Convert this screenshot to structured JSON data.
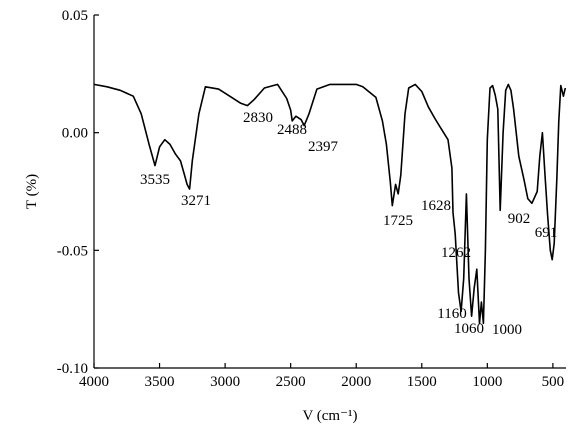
{
  "chart_data": {
    "type": "line",
    "xlabel": "V (cm⁻¹)",
    "ylabel": "T (%)",
    "xlim": [
      4000,
      400
    ],
    "ylim": [
      -0.1,
      0.05
    ],
    "grid": false,
    "x_ticks": [
      4000,
      3500,
      3000,
      2500,
      2000,
      1500,
      1000,
      500
    ],
    "y_ticks": [
      {
        "value": 0.05,
        "label": "0.05"
      },
      {
        "value": 0.0,
        "label": "0.00"
      },
      {
        "value": -0.05,
        "label": "-0.05"
      },
      {
        "value": -0.1,
        "label": "-0.10"
      }
    ],
    "series": [
      {
        "x": [
          4000,
          3900,
          3800,
          3700,
          3640,
          3580,
          3535,
          3500,
          3460,
          3420,
          3380,
          3340,
          3310,
          3290,
          3271,
          3250,
          3200,
          3150,
          3050,
          2950,
          2880,
          2830,
          2780,
          2700,
          2600,
          2530,
          2500,
          2488,
          2460,
          2420,
          2397,
          2360,
          2300,
          2200,
          2100,
          2000,
          1950,
          1850,
          1800,
          1770,
          1740,
          1725,
          1700,
          1680,
          1660,
          1628,
          1600,
          1550,
          1500,
          1450,
          1400,
          1350,
          1300,
          1270,
          1262,
          1245,
          1220,
          1200,
          1180,
          1160,
          1140,
          1120,
          1100,
          1080,
          1060,
          1045,
          1030,
          1015,
          1000,
          980,
          960,
          940,
          920,
          902,
          880,
          860,
          840,
          820,
          800,
          760,
          720,
          691,
          660,
          620,
          600,
          580,
          560,
          540,
          520,
          505,
          490,
          470,
          455,
          440,
          420,
          405
        ],
        "y": [
          0.0205,
          0.0195,
          0.018,
          0.0155,
          0.008,
          -0.005,
          -0.014,
          -0.006,
          -0.003,
          -0.005,
          -0.009,
          -0.012,
          -0.018,
          -0.022,
          -0.024,
          -0.012,
          0.008,
          0.0195,
          0.0185,
          0.015,
          0.0125,
          0.0115,
          0.014,
          0.019,
          0.0205,
          0.0145,
          0.0095,
          0.005,
          0.007,
          0.0055,
          0.003,
          0.008,
          0.0185,
          0.0205,
          0.0205,
          0.0205,
          0.0195,
          0.015,
          0.005,
          -0.005,
          -0.021,
          -0.031,
          -0.022,
          -0.026,
          -0.018,
          0.008,
          0.019,
          0.0205,
          0.0175,
          0.011,
          0.006,
          0.0015,
          -0.003,
          -0.015,
          -0.034,
          -0.043,
          -0.068,
          -0.076,
          -0.062,
          -0.026,
          -0.062,
          -0.078,
          -0.066,
          -0.058,
          -0.081,
          -0.072,
          -0.081,
          -0.05,
          -0.003,
          0.019,
          0.02,
          0.016,
          0.01,
          -0.033,
          0.0,
          0.018,
          0.0205,
          0.018,
          0.01,
          -0.01,
          -0.02,
          -0.028,
          -0.03,
          -0.025,
          -0.01,
          0.0,
          -0.018,
          -0.035,
          -0.05,
          -0.054,
          -0.047,
          -0.02,
          0.005,
          0.02,
          0.0155,
          0.019
        ]
      }
    ],
    "annotations": [
      {
        "text": "3535",
        "x": 3535
      },
      {
        "text": "3271",
        "x": 3271
      },
      {
        "text": "2830",
        "x": 2830
      },
      {
        "text": "2488",
        "x": 2488
      },
      {
        "text": "2397",
        "x": 2397
      },
      {
        "text": "1725",
        "x": 1725
      },
      {
        "text": "1628",
        "x": 1628
      },
      {
        "text": "1262",
        "x": 1262
      },
      {
        "text": "1160",
        "x": 1160
      },
      {
        "text": "1060",
        "x": 1060
      },
      {
        "text": "1000",
        "x": 1000
      },
      {
        "text": "902",
        "x": 902
      },
      {
        "text": "691",
        "x": 691
      }
    ]
  }
}
